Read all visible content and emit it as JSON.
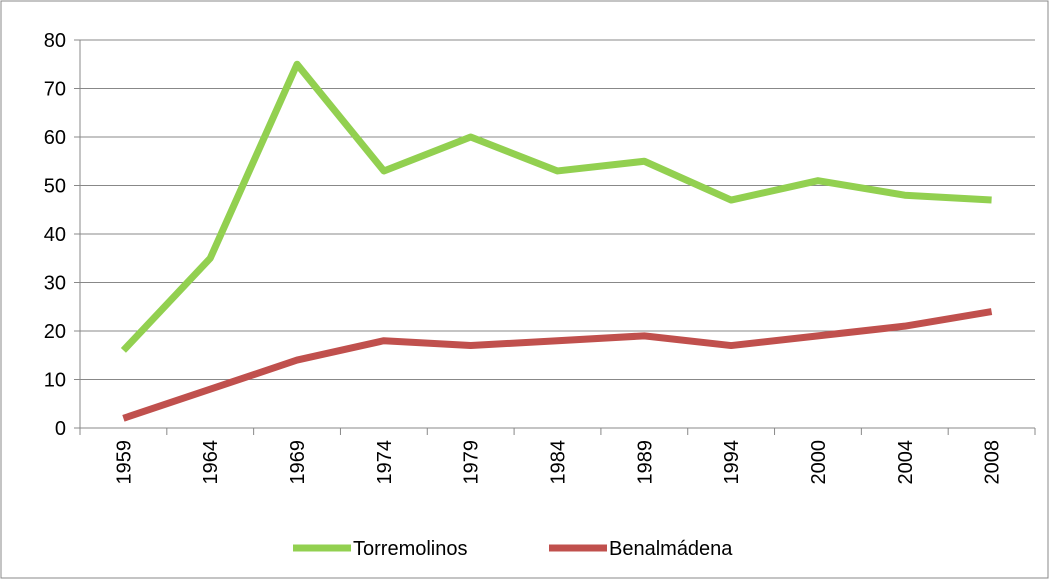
{
  "chart_data": {
    "type": "line",
    "categories": [
      "1959",
      "1964",
      "1969",
      "1974",
      "1979",
      "1984",
      "1989",
      "1994",
      "2000",
      "2004",
      "2008"
    ],
    "series": [
      {
        "name": "Torremolinos",
        "color": "#92d050",
        "values": [
          16,
          35,
          75,
          53,
          60,
          53,
          55,
          47,
          51,
          48,
          47
        ]
      },
      {
        "name": "Benalmádena",
        "color": "#c0504d",
        "values": [
          2,
          8,
          14,
          18,
          17,
          18,
          19,
          17,
          19,
          21,
          24
        ]
      }
    ],
    "ylim": [
      0,
      80
    ],
    "yticks": [
      0,
      10,
      20,
      30,
      40,
      50,
      60,
      70,
      80
    ],
    "grid": true,
    "legend": "bottom"
  }
}
